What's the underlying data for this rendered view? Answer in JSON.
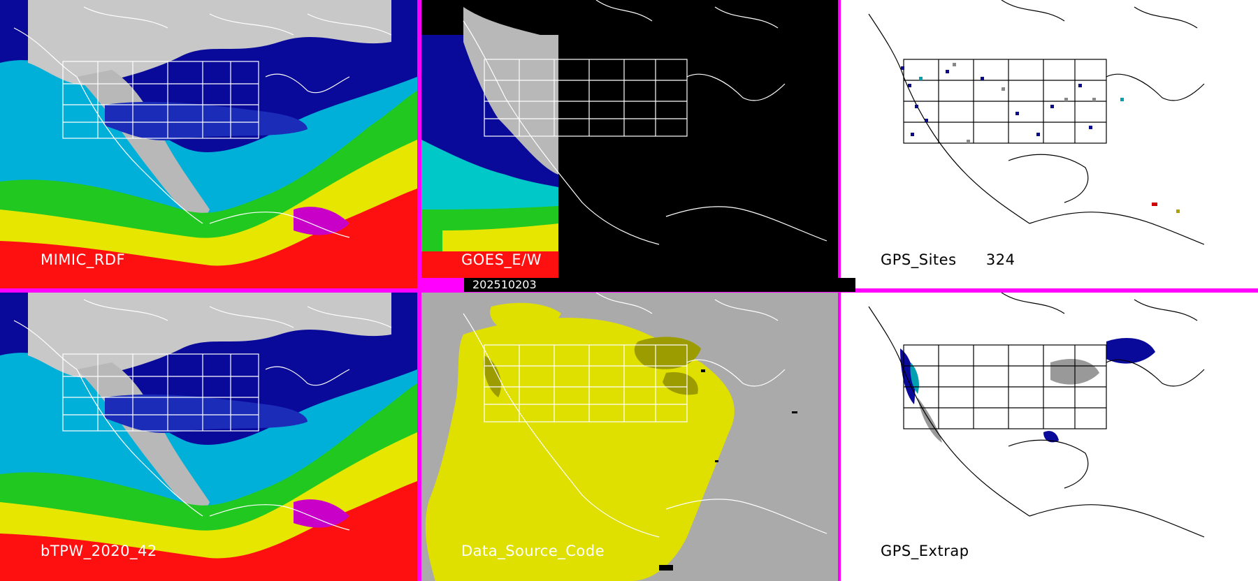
{
  "panels": {
    "top_left": {
      "label": "MIMIC_RDF"
    },
    "top_middle": {
      "label": "GOES_E/W"
    },
    "top_right": {
      "label": "GPS_Sites",
      "count": "324"
    },
    "bottom_left": {
      "label": "bTPW_2020_42"
    },
    "bottom_middle": {
      "label": "Data_Source_Code"
    },
    "bottom_right": {
      "label": "GPS_Extrap"
    }
  },
  "date_bar": {
    "text": "202510203"
  },
  "colors": {
    "divider": "#ff00ff",
    "tpw_scale": [
      "#dcdcdc",
      "#9a9a9a",
      "#0000a0",
      "#1e3cff",
      "#00e5e5",
      "#00c800",
      "#e6e600",
      "#ff0000",
      "#c800c8"
    ],
    "data_source_satellite": "#e0e000",
    "data_source_model": "#aaaaaa",
    "data_source_overlap": "#9c9c00"
  }
}
